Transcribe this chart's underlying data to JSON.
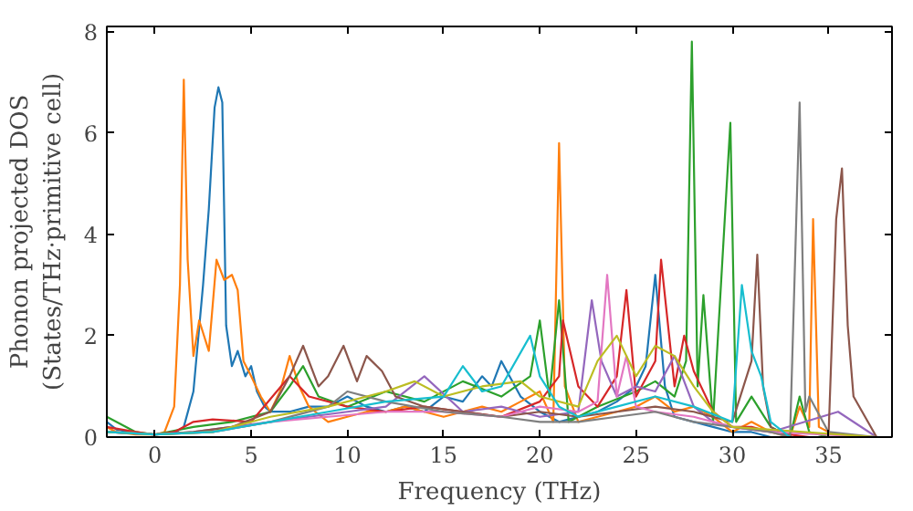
{
  "chart_data": {
    "type": "line",
    "xlabel": "Frequency (THz)",
    "ylabel": "Phonon projected DOS\n(States/THz·primitive cell)",
    "xlim": [
      -2.5,
      38.3
    ],
    "ylim": [
      0,
      8.1
    ],
    "xticks": [
      0,
      5,
      10,
      15,
      20,
      25,
      30,
      35
    ],
    "yticks": [
      0,
      2,
      4,
      6,
      8
    ],
    "grid": false,
    "marker": "none",
    "line_style": "solid",
    "series": [
      {
        "color": "#1f77b4",
        "x": [
          -2.5,
          -2,
          -1,
          0,
          1,
          1.5,
          2,
          2.5,
          2.8,
          3.1,
          3.3,
          3.5,
          3.7,
          4,
          4.3,
          4.7,
          5,
          5.3,
          5.7,
          6,
          7,
          8,
          9,
          10,
          11,
          12,
          13,
          14,
          15,
          16,
          17,
          17.5,
          18,
          19,
          20,
          21,
          22,
          23,
          24,
          25,
          25.5,
          26,
          26.5,
          27,
          28,
          29,
          30,
          31,
          32,
          33
        ],
        "values": [
          0.3,
          0.15,
          0.08,
          0.05,
          0.08,
          0.2,
          0.9,
          3.0,
          4.5,
          6.5,
          6.9,
          6.6,
          2.2,
          1.4,
          1.7,
          1.2,
          1.4,
          0.9,
          0.6,
          0.5,
          0.5,
          0.6,
          0.6,
          0.8,
          0.6,
          0.5,
          0.6,
          0.5,
          0.8,
          0.7,
          1.2,
          1.0,
          1.5,
          0.8,
          0.5,
          0.3,
          0.4,
          0.5,
          0.7,
          1.0,
          1.4,
          3.2,
          1.0,
          0.4,
          0.3,
          0.2,
          0.1,
          0.1,
          0,
          0
        ]
      },
      {
        "color": "#ff7f0e",
        "x": [
          -2.5,
          -2,
          -1,
          0,
          0.5,
          1,
          1.3,
          1.5,
          1.7,
          2,
          2.3,
          2.8,
          3.2,
          3.6,
          4,
          4.3,
          4.6,
          5,
          5.5,
          6,
          6.5,
          7,
          7.5,
          8,
          9,
          10,
          11,
          12,
          13,
          14,
          15,
          16,
          17,
          18,
          19,
          20,
          20.7,
          21,
          21.3,
          22,
          23,
          24,
          25,
          26,
          27,
          28,
          29,
          30,
          31,
          32,
          33,
          33.5,
          34,
          34.2,
          34.5,
          35,
          36,
          37.5
        ],
        "values": [
          0.2,
          0.1,
          0.05,
          0.05,
          0.1,
          0.6,
          3.0,
          7.05,
          3.5,
          1.6,
          2.3,
          1.7,
          3.5,
          3.1,
          3.2,
          2.9,
          1.5,
          1.2,
          0.8,
          0.5,
          0.9,
          1.6,
          1.0,
          0.6,
          0.3,
          0.4,
          0.5,
          0.5,
          0.6,
          0.5,
          0.4,
          0.5,
          0.6,
          0.5,
          0.7,
          0.9,
          0.3,
          5.8,
          1.0,
          0.3,
          0.4,
          0.5,
          0.6,
          0.8,
          0.5,
          0.6,
          0.4,
          0.1,
          0.3,
          0.1,
          0,
          0.6,
          0.2,
          4.3,
          0.2,
          0.1,
          0,
          0
        ]
      },
      {
        "color": "#2ca02c",
        "x": [
          -2.5,
          -1,
          0,
          2,
          4,
          6,
          7,
          7.7,
          8.5,
          10,
          12,
          14,
          16,
          18,
          19.5,
          20,
          20.5,
          21,
          21.5,
          23,
          25,
          26,
          27,
          27.6,
          27.9,
          28.2,
          28.5,
          29,
          29.9,
          30.2,
          31,
          32,
          33,
          33.5,
          34,
          35,
          37.5
        ],
        "values": [
          0.4,
          0.1,
          0.05,
          0.2,
          0.3,
          0.5,
          1.0,
          1.4,
          0.8,
          0.6,
          0.9,
          0.7,
          1.1,
          0.8,
          1.2,
          2.3,
          0.8,
          2.7,
          0.3,
          0.6,
          0.9,
          1.1,
          0.8,
          1.5,
          7.8,
          1.0,
          2.8,
          0.3,
          6.2,
          0.3,
          0.8,
          0.2,
          0,
          0.8,
          0.1,
          0,
          0
        ]
      },
      {
        "color": "#d62728",
        "x": [
          -2.5,
          -1,
          0,
          1,
          2,
          3,
          5,
          7,
          8,
          10,
          12,
          14,
          16,
          18,
          20,
          21,
          21.2,
          22,
          23,
          24,
          24.5,
          25,
          26,
          26.3,
          27,
          27.5,
          28,
          29,
          30,
          31,
          32,
          34,
          37.5
        ],
        "values": [
          0.2,
          0.1,
          0.05,
          0.1,
          0.3,
          0.35,
          0.3,
          1.2,
          0.8,
          0.6,
          0.5,
          0.6,
          0.5,
          0.4,
          0.7,
          1.2,
          2.3,
          1.0,
          0.6,
          1.2,
          2.9,
          0.8,
          1.5,
          3.5,
          1.0,
          2.0,
          1.3,
          0.5,
          0.2,
          0.2,
          0.1,
          0,
          0
        ]
      },
      {
        "color": "#9467bd",
        "x": [
          -2.5,
          0,
          2,
          4,
          6,
          8,
          10,
          12,
          14,
          16,
          18,
          20,
          22,
          22.7,
          23.2,
          24,
          25,
          26,
          27,
          28,
          29,
          30,
          32,
          35.5,
          37.5
        ],
        "values": [
          0.1,
          0.05,
          0.1,
          0.2,
          0.3,
          0.4,
          0.5,
          0.6,
          1.2,
          0.5,
          0.6,
          0.4,
          0.5,
          2.7,
          1.5,
          0.8,
          1.0,
          0.9,
          1.6,
          0.6,
          0.3,
          0.2,
          0.1,
          0.5,
          0
        ]
      },
      {
        "color": "#8c564b",
        "x": [
          -2.5,
          0,
          2,
          4,
          6,
          7,
          7.7,
          8.5,
          9,
          9.8,
          10.5,
          11,
          11.8,
          12.5,
          14,
          16,
          18,
          20,
          22,
          24,
          26,
          28,
          30,
          31,
          31.3,
          31.6,
          32,
          33,
          35,
          35.4,
          35.7,
          36,
          36.3,
          37.5
        ],
        "values": [
          0.1,
          0.05,
          0.1,
          0.2,
          0.5,
          1.2,
          1.8,
          1.0,
          1.2,
          1.8,
          1.1,
          1.6,
          1.3,
          0.8,
          0.6,
          0.5,
          0.4,
          0.5,
          0.4,
          0.5,
          0.6,
          0.5,
          0.3,
          1.5,
          3.6,
          1.0,
          0.2,
          0,
          0,
          4.3,
          5.3,
          2.2,
          0.8,
          0
        ]
      },
      {
        "color": "#e377c2",
        "x": [
          -2.5,
          0,
          3,
          6,
          9,
          12,
          15,
          18,
          20,
          22,
          23,
          23.5,
          24,
          24.5,
          25,
          26,
          28,
          30,
          32,
          37.5
        ],
        "values": [
          0.1,
          0.05,
          0.1,
          0.3,
          0.4,
          0.5,
          0.5,
          0.4,
          0.6,
          0.5,
          0.7,
          3.2,
          0.8,
          1.6,
          0.6,
          0.5,
          0.4,
          0.2,
          0.1,
          0
        ]
      },
      {
        "color": "#7f7f7f",
        "x": [
          -2.5,
          0,
          3,
          6,
          9,
          10,
          12,
          15,
          18,
          20,
          22,
          24,
          26,
          28,
          30,
          32,
          33,
          33.5,
          33.8,
          34,
          35,
          37.5
        ],
        "values": [
          0.1,
          0.05,
          0.1,
          0.3,
          0.6,
          0.9,
          0.7,
          0.5,
          0.4,
          0.3,
          0.3,
          0.4,
          0.5,
          0.3,
          0.2,
          0.1,
          0,
          6.6,
          0.5,
          0.8,
          0.1,
          0
        ]
      },
      {
        "color": "#bcbd22",
        "x": [
          -2.5,
          0,
          3,
          6,
          9,
          12,
          13.5,
          15,
          17,
          19,
          20,
          22,
          23,
          24,
          25,
          26,
          27,
          28,
          29,
          30,
          37.5
        ],
        "values": [
          0.1,
          0.05,
          0.1,
          0.4,
          0.6,
          0.9,
          1.1,
          0.8,
          1.0,
          1.1,
          0.8,
          0.6,
          1.5,
          2.0,
          1.2,
          1.8,
          1.6,
          1.0,
          0.5,
          0.2,
          0
        ]
      },
      {
        "color": "#17becf",
        "x": [
          -2.5,
          0,
          3,
          6,
          9,
          12,
          15,
          16,
          17,
          18,
          19.5,
          20,
          21,
          22,
          24,
          26,
          28,
          30,
          30.5,
          31,
          31.5,
          32,
          33
        ],
        "values": [
          0.1,
          0.05,
          0.1,
          0.3,
          0.5,
          0.7,
          0.8,
          1.4,
          0.9,
          1.0,
          2.0,
          1.2,
          0.6,
          0.4,
          0.6,
          0.8,
          0.6,
          0.3,
          3.0,
          1.7,
          1.2,
          0.3,
          0
        ]
      }
    ]
  }
}
